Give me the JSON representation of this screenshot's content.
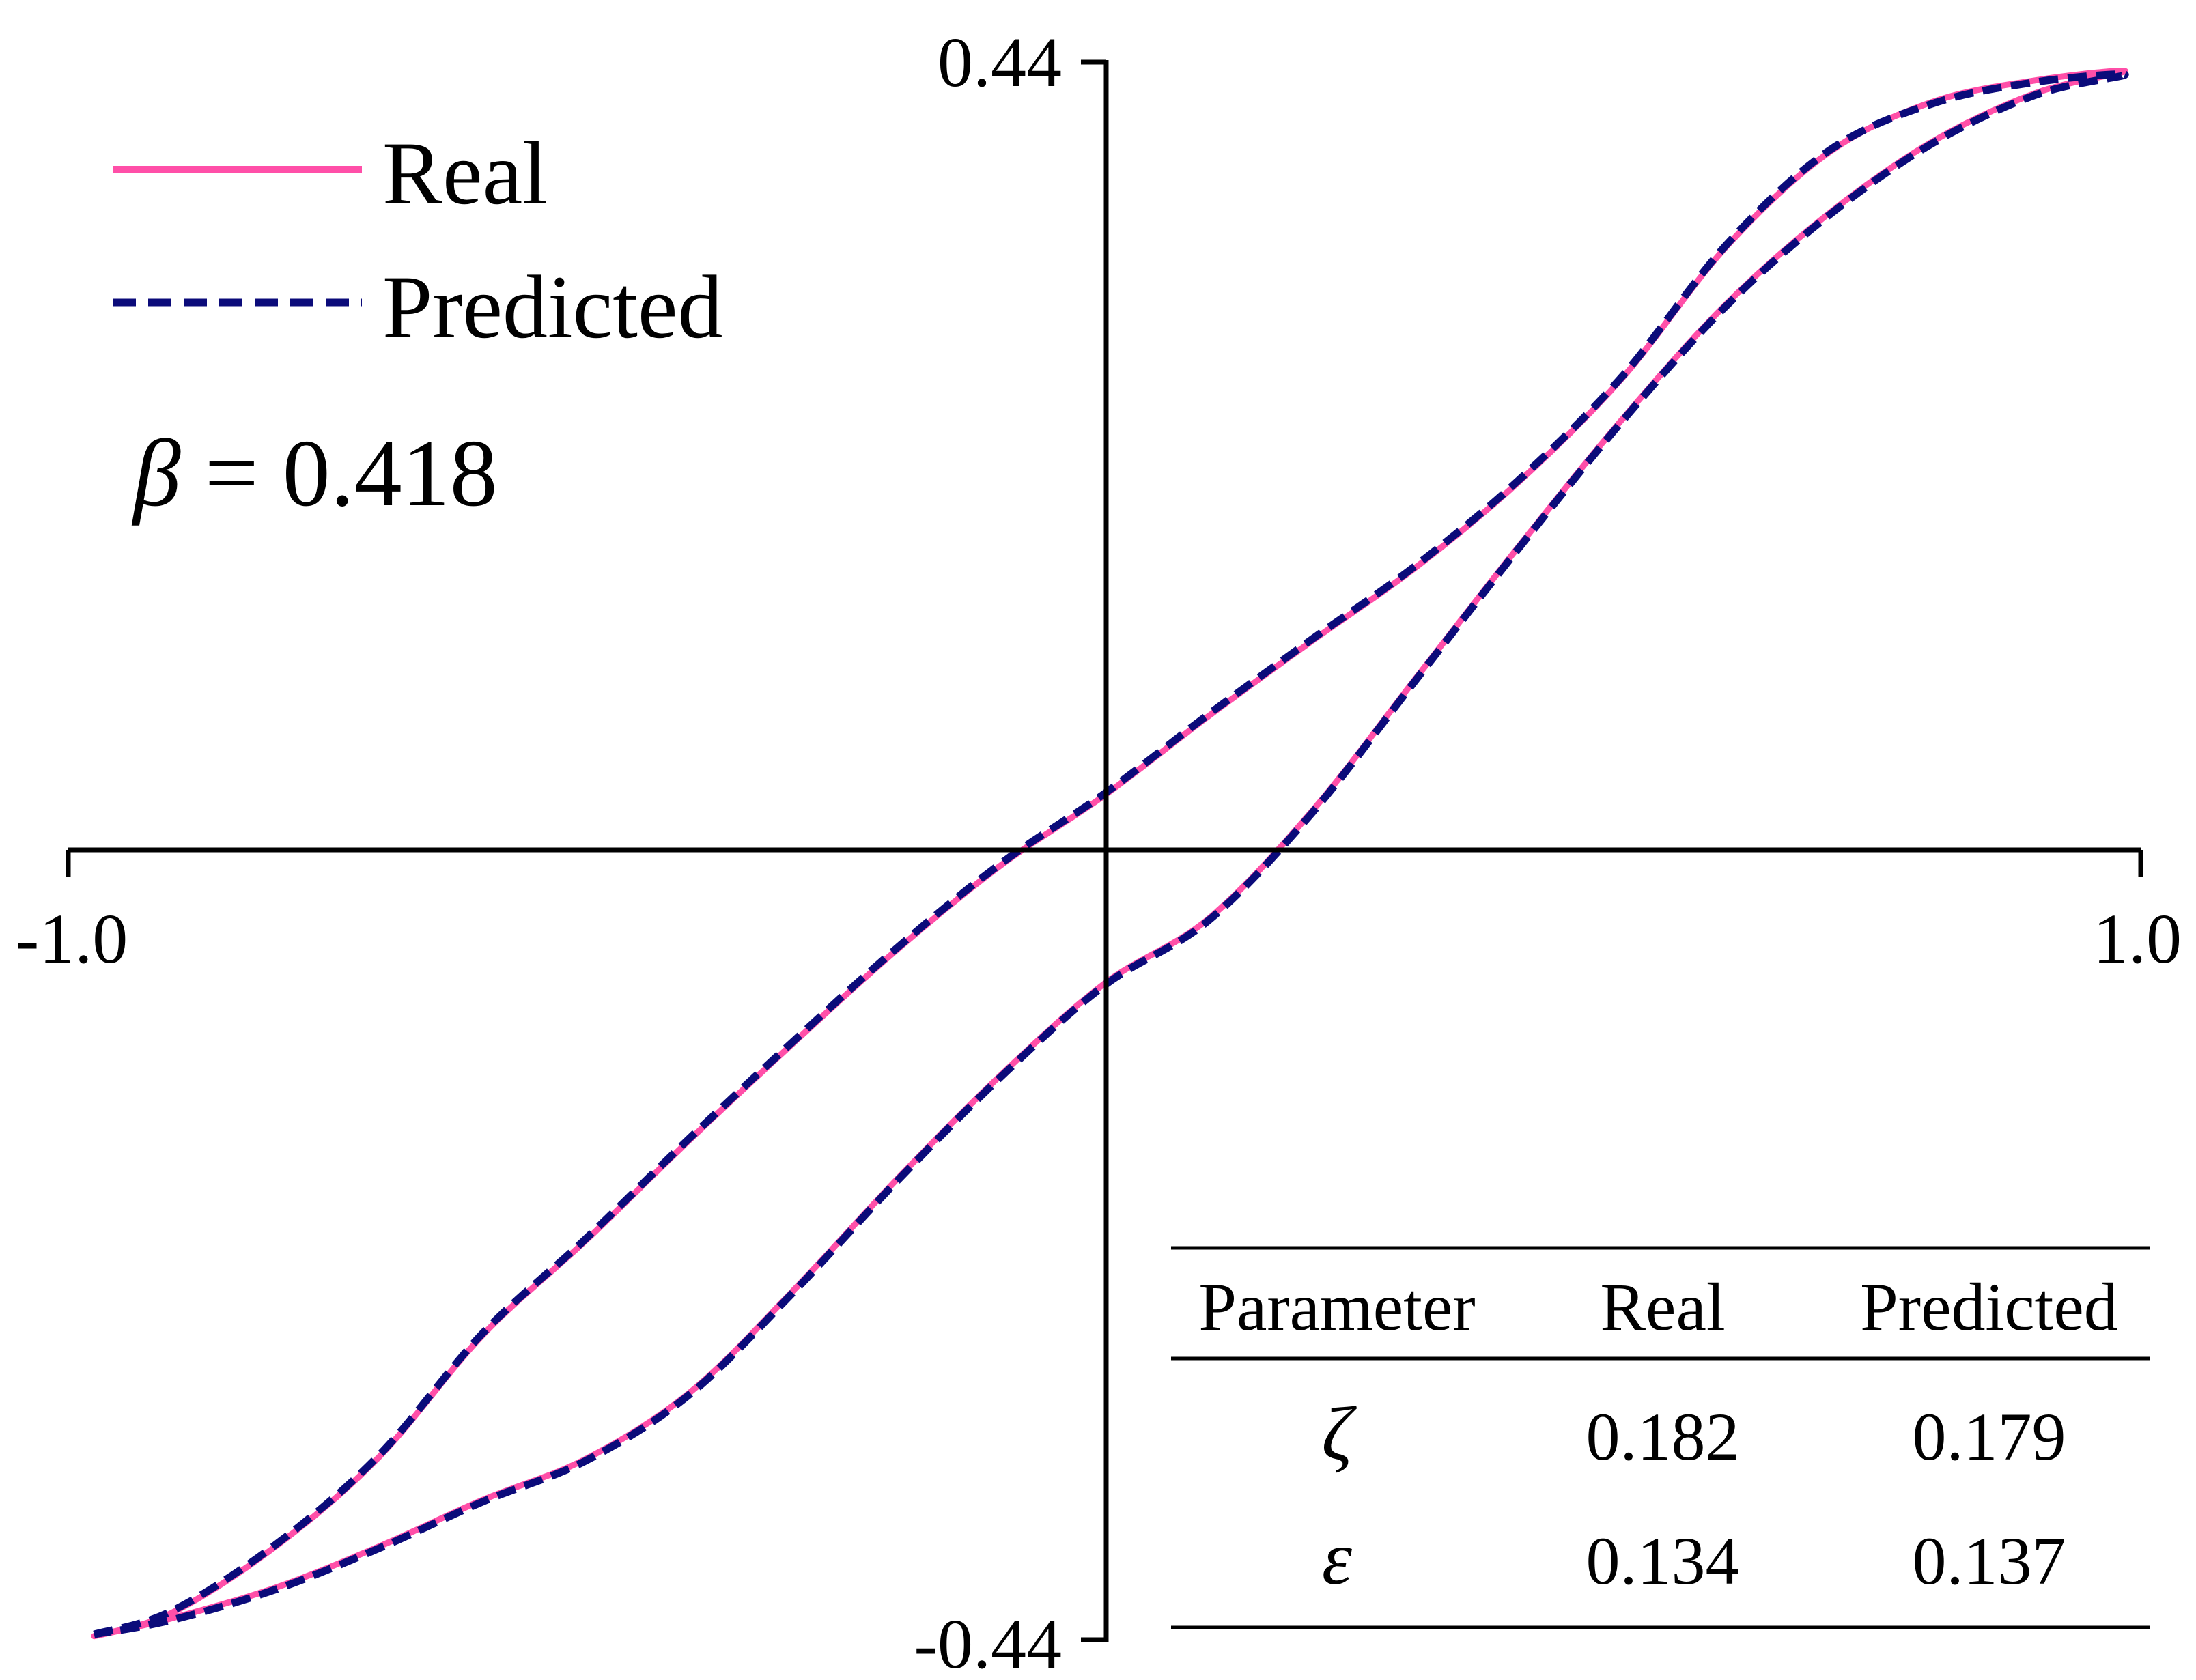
{
  "colors": {
    "real": "#ff4fa8",
    "predicted": "#0b0b7a",
    "axis": "#000000"
  },
  "legend": {
    "items": [
      {
        "name": "Real",
        "style": "solid"
      },
      {
        "name": "Predicted",
        "style": "dashed"
      }
    ]
  },
  "annotation": {
    "symbol": "β",
    "equals": " = ",
    "value": "0.418"
  },
  "chart_data": {
    "type": "line",
    "xlim": [
      -1.0,
      1.0
    ],
    "ylim": [
      -0.44,
      0.44
    ],
    "x_ticks": [
      "-1.0",
      "1.0"
    ],
    "y_ticks": [
      "0.44",
      "-0.44"
    ],
    "grid": false,
    "legend_position": "top-left",
    "series": [
      {
        "name": "Real",
        "x": [
          -0.975,
          -0.9,
          -0.8,
          -0.7,
          -0.6,
          -0.5,
          -0.4,
          -0.3,
          -0.2,
          -0.1,
          0.0,
          0.1,
          0.2,
          0.3,
          0.4,
          0.5,
          0.6,
          0.7,
          0.8,
          0.9,
          0.985,
          0.9,
          0.8,
          0.7,
          0.6,
          0.5,
          0.4,
          0.3,
          0.2,
          0.1,
          0.0,
          -0.1,
          -0.2,
          -0.3,
          -0.4,
          -0.5,
          -0.6,
          -0.7,
          -0.8,
          -0.9,
          -0.975
        ],
        "y": [
          -0.438,
          -0.425,
          -0.388,
          -0.338,
          -0.27,
          -0.217,
          -0.161,
          -0.107,
          -0.055,
          -0.008,
          0.031,
          0.075,
          0.117,
          0.158,
          0.206,
          0.264,
          0.337,
          0.39,
          0.418,
          0.43,
          0.435,
          0.423,
          0.396,
          0.356,
          0.305,
          0.241,
          0.17,
          0.096,
          0.022,
          -0.038,
          -0.074,
          -0.125,
          -0.183,
          -0.245,
          -0.302,
          -0.339,
          -0.362,
          -0.388,
          -0.411,
          -0.428,
          -0.438
        ]
      },
      {
        "name": "Predicted",
        "x": [
          -0.975,
          -0.9,
          -0.8,
          -0.7,
          -0.6,
          -0.5,
          -0.4,
          -0.3,
          -0.2,
          -0.1,
          0.0,
          0.1,
          0.2,
          0.3,
          0.4,
          0.5,
          0.6,
          0.7,
          0.8,
          0.9,
          0.985,
          0.9,
          0.8,
          0.7,
          0.6,
          0.5,
          0.4,
          0.3,
          0.2,
          0.1,
          0.0,
          -0.1,
          -0.2,
          -0.3,
          -0.4,
          -0.5,
          -0.6,
          -0.7,
          -0.8,
          -0.9,
          -0.975
        ],
        "y": [
          -0.437,
          -0.424,
          -0.387,
          -0.337,
          -0.269,
          -0.216,
          -0.16,
          -0.106,
          -0.054,
          -0.007,
          0.032,
          0.076,
          0.118,
          0.159,
          0.207,
          0.265,
          0.338,
          0.391,
          0.417,
          0.429,
          0.433,
          0.422,
          0.395,
          0.355,
          0.304,
          0.24,
          0.169,
          0.095,
          0.021,
          -0.039,
          -0.075,
          -0.126,
          -0.184,
          -0.246,
          -0.303,
          -0.34,
          -0.363,
          -0.389,
          -0.412,
          -0.429,
          -0.437
        ]
      }
    ]
  },
  "table": {
    "headers": [
      "Parameter",
      "Real",
      "Predicted"
    ],
    "rows": [
      {
        "param": "ζ",
        "real": "0.182",
        "predicted": "0.179"
      },
      {
        "param": "ε",
        "real": "0.134",
        "predicted": "0.137"
      }
    ]
  }
}
